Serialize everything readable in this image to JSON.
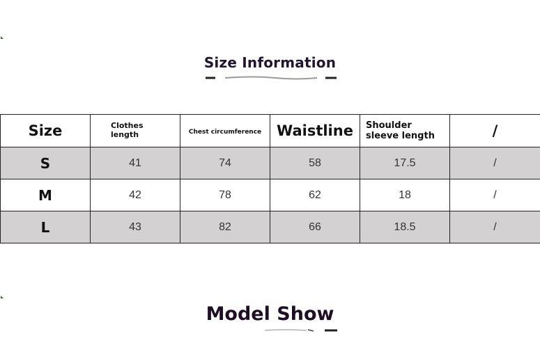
{
  "size_section": {
    "title": "Size Information"
  },
  "table": {
    "headers": [
      "Size",
      "Clothes length",
      "Chest circumference",
      "Waistline",
      "Shoulder sleeve length",
      "/"
    ],
    "rows": [
      {
        "size": "S",
        "clothes_length": "41",
        "chest": "74",
        "waistline": "58",
        "shoulder_sleeve": "17.5",
        "extra": "/"
      },
      {
        "size": "M",
        "clothes_length": "42",
        "chest": "78",
        "waistline": "62",
        "shoulder_sleeve": "18",
        "extra": "/"
      },
      {
        "size": "L",
        "clothes_length": "43",
        "chest": "82",
        "waistline": "66",
        "shoulder_sleeve": "18.5",
        "extra": "/"
      }
    ],
    "shade_color": "#d3d1d2"
  },
  "model_section": {
    "title": "Model Show"
  }
}
